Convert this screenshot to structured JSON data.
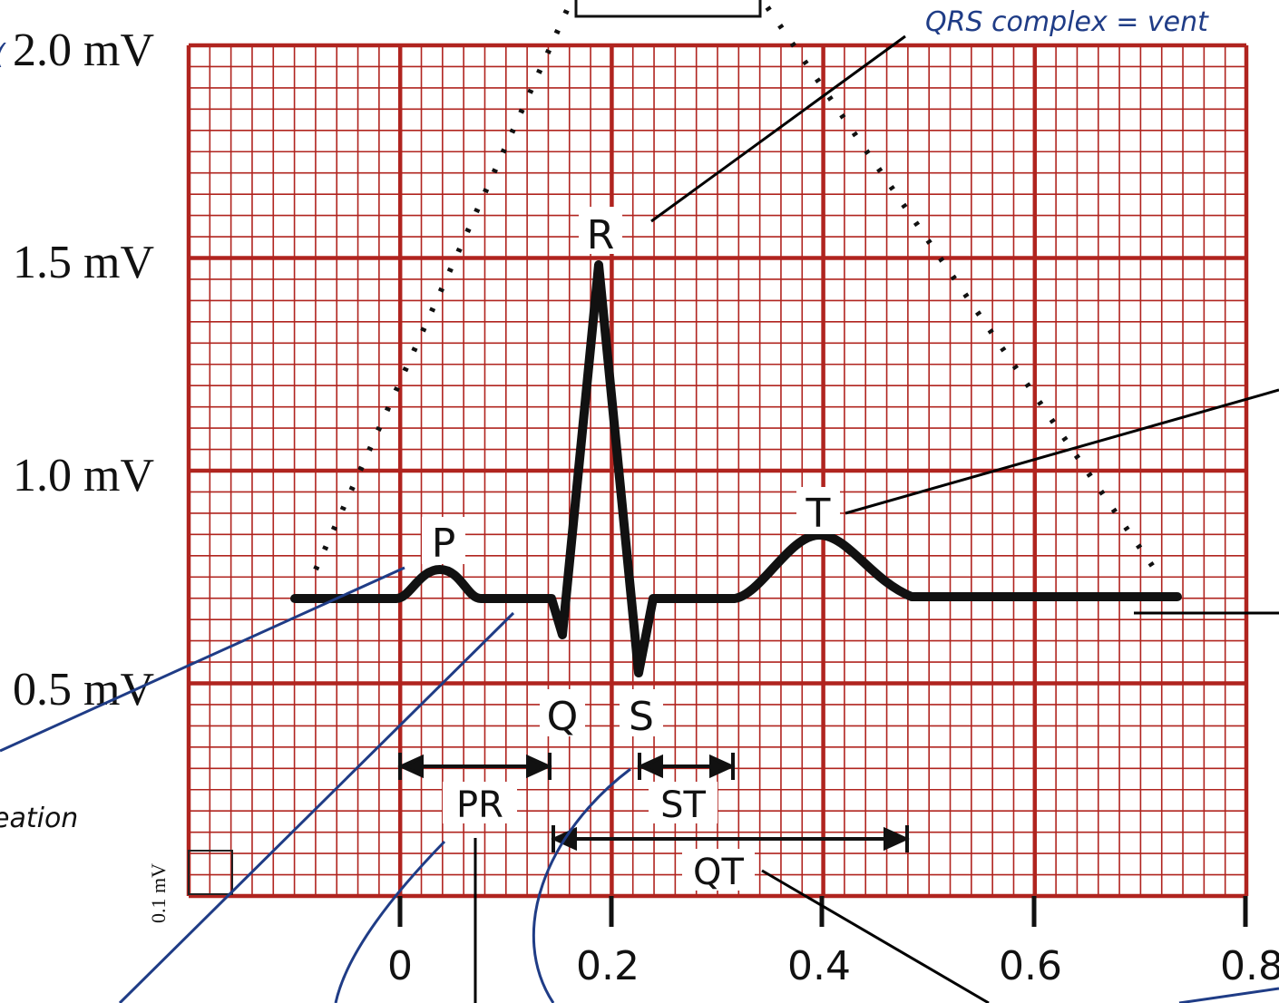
{
  "figure": {
    "axis_labels": {
      "y_2_0": "2.0 mV",
      "y_1_5": "1.5 mV",
      "y_1_0": "1.0 mV",
      "y_0_5": "0.5 mV",
      "box_0_1": "0.1 mV"
    },
    "time_ticks": [
      "0",
      "0.2",
      "0.4",
      "0.6",
      "0.8"
    ],
    "waves": {
      "p": "P",
      "q": "Q",
      "r": "R",
      "s": "S",
      "t": "T"
    },
    "intervals": {
      "pr": "PR",
      "st": "ST",
      "qt": "QT"
    },
    "handwriting": {
      "qrs_note": "QRS complex = vent",
      "left_note": "eation"
    },
    "colors": {
      "grid": "#b0241f",
      "trace": "#111111",
      "annotation_ink": "#1f3c86",
      "leader": "#000000"
    }
  }
}
